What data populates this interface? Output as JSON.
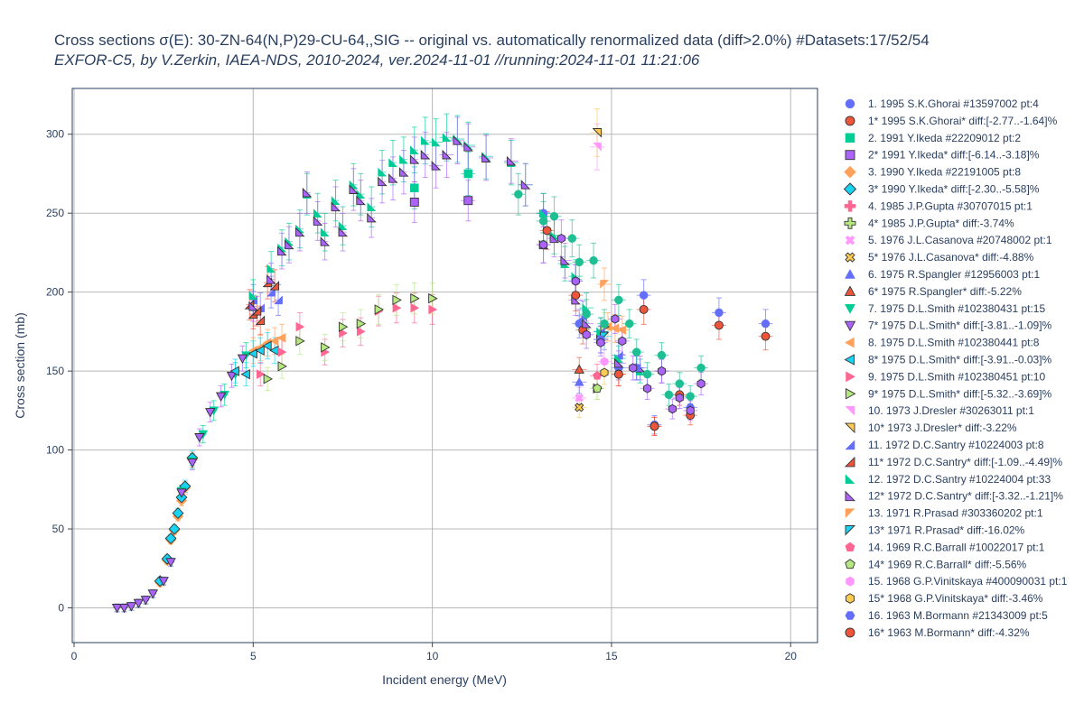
{
  "chart_data": {
    "type": "scatter",
    "title": "Cross sections σ(E): 30-ZN-64(N,P)29-CU-64,,SIG -- original vs. automatically renormalized data (diff>2.0%) #Datasets:17/52/54",
    "subtitle": "EXFOR-C5, by V.Zerkin, IAEA-NDS, 2010-2024, ver.2024-11-01 //running:2024-11-01 11:21:06",
    "xlabel": "Incident energy (MeV)",
    "ylabel": "Cross section (mb)",
    "xlim": [
      -0.05,
      20.75
    ],
    "ylim": [
      -22,
      329
    ],
    "xticks": [
      0,
      5,
      10,
      15,
      20
    ],
    "yticks": [
      0,
      50,
      100,
      150,
      200,
      250,
      300
    ],
    "grid": true,
    "legend_position": "right",
    "series": [
      {
        "name": "1. 1995 S.K.Ghorai #13597002 pt:4",
        "color": "#636efa",
        "marker": "circle",
        "points": [
          [
            13.1,
            250
          ],
          [
            14.1,
            180
          ],
          [
            15.2,
            152
          ],
          [
            16.2,
            116
          ]
        ]
      },
      {
        "name": "1* 1995 S.K.Ghorai* diff:[-2.77..-1.64]%",
        "color": "#ef553b",
        "marker": "circle-o",
        "points": [
          [
            13.2,
            239
          ],
          [
            14.2,
            176
          ],
          [
            15.2,
            148
          ],
          [
            16.2,
            115
          ]
        ]
      },
      {
        "name": "2. 1991 Y.Ikeda #22209012 pt:2",
        "color": "#00cc96",
        "marker": "square",
        "points": [
          [
            9.5,
            266
          ],
          [
            11.0,
            275
          ]
        ]
      },
      {
        "name": "2* 1991 Y.Ikeda* diff:[-6.14..-3.18]%",
        "color": "#ab63fa",
        "marker": "square-o",
        "points": [
          [
            9.5,
            257
          ],
          [
            11.0,
            258
          ]
        ]
      },
      {
        "name": "3. 1990 Y.Ikeda #22191005 pt:8",
        "color": "#ffa15a",
        "marker": "diamond",
        "points": [
          [
            2.4,
            16
          ],
          [
            2.6,
            30
          ],
          [
            2.7,
            43
          ],
          [
            2.8,
            49
          ],
          [
            2.9,
            58
          ],
          [
            3.0,
            68
          ],
          [
            3.1,
            76
          ],
          [
            3.3,
            94
          ]
        ]
      },
      {
        "name": "3* 1990 Y.Ikeda* diff:[-2.30..-5.58]%",
        "color": "#19d3f3",
        "marker": "diamond-o",
        "points": [
          [
            2.4,
            17
          ],
          [
            2.6,
            31
          ],
          [
            2.7,
            44
          ],
          [
            2.8,
            50
          ],
          [
            2.9,
            60
          ],
          [
            3.0,
            70
          ],
          [
            3.1,
            77
          ],
          [
            3.3,
            95
          ]
        ]
      },
      {
        "name": "4. 1985 J.P.Gupta #30707015 pt:1",
        "color": "#ff6692",
        "marker": "cross",
        "points": []
      },
      {
        "name": "4* 1985 J.P.Gupta* diff:-3.74%",
        "color": "#b6e880",
        "marker": "cross-o",
        "points": []
      },
      {
        "name": "5. 1976 J.L.Casanova #20748002 pt:1",
        "color": "#ff97ff",
        "marker": "x",
        "points": [
          [
            14.1,
            133
          ]
        ]
      },
      {
        "name": "5* 1976 J.L.Casanova* diff:-4.88%",
        "color": "#fecb52",
        "marker": "x-o",
        "points": [
          [
            14.1,
            127
          ]
        ]
      },
      {
        "name": "6. 1975 R.Spangler #12956003 pt:1",
        "color": "#636efa",
        "marker": "triangle-up",
        "points": [
          [
            14.1,
            143
          ]
        ]
      },
      {
        "name": "6* 1975 R.Spangler* diff:-5.22%",
        "color": "#ef553b",
        "marker": "triangle-up-o",
        "points": [
          [
            14.1,
            151
          ]
        ]
      },
      {
        "name": "7. 1975 D.L.Smith #102380431 pt:15",
        "color": "#00cc96",
        "marker": "triangle-down",
        "points": [
          [
            1.2,
            0
          ],
          [
            1.4,
            0
          ],
          [
            1.6,
            1
          ],
          [
            1.8,
            3
          ],
          [
            2.0,
            5
          ],
          [
            2.2,
            9
          ],
          [
            2.5,
            17
          ],
          [
            2.7,
            29
          ],
          [
            3.0,
            74
          ],
          [
            3.3,
            93
          ],
          [
            3.6,
            110
          ],
          [
            3.9,
            125
          ],
          [
            4.2,
            135
          ],
          [
            4.5,
            148
          ],
          [
            4.8,
            160
          ]
        ]
      },
      {
        "name": "7* 1975 D.L.Smith* diff:[-3.81..-1.09]%",
        "color": "#ab63fa",
        "marker": "triangle-down-o",
        "points": [
          [
            1.2,
            0
          ],
          [
            1.4,
            0
          ],
          [
            1.6,
            1
          ],
          [
            1.8,
            3
          ],
          [
            2.0,
            5
          ],
          [
            2.2,
            9
          ],
          [
            2.5,
            17
          ],
          [
            2.7,
            29
          ],
          [
            3.0,
            73
          ],
          [
            3.3,
            92
          ],
          [
            3.5,
            108
          ],
          [
            3.8,
            124
          ],
          [
            4.1,
            134
          ],
          [
            4.4,
            147
          ],
          [
            4.7,
            158
          ]
        ]
      },
      {
        "name": "8. 1975 D.L.Smith #102380441 pt:8",
        "color": "#ffa15a",
        "marker": "triangle-left",
        "points": [
          [
            5.0,
            163
          ],
          [
            5.2,
            165
          ],
          [
            5.4,
            168
          ],
          [
            5.6,
            169
          ],
          [
            5.8,
            171
          ],
          [
            14.9,
            178
          ],
          [
            15.1,
            177
          ],
          [
            15.3,
            176
          ]
        ]
      },
      {
        "name": "8* 1975 D.L.Smith* diff:[-3.91..-0.03]%",
        "color": "#19d3f3",
        "marker": "triangle-left-o",
        "points": [
          [
            4.5,
            150
          ],
          [
            4.8,
            148
          ],
          [
            5.0,
            161
          ],
          [
            5.2,
            163
          ],
          [
            5.4,
            166
          ],
          [
            5.6,
            163
          ]
        ]
      },
      {
        "name": "9. 1975 D.L.Smith #102380451 pt:10",
        "color": "#ff6692",
        "marker": "triangle-right",
        "points": [
          [
            5.2,
            148
          ],
          [
            5.8,
            162
          ],
          [
            6.3,
            178
          ],
          [
            7.0,
            162
          ],
          [
            7.5,
            174
          ],
          [
            8.0,
            175
          ],
          [
            8.5,
            188
          ],
          [
            9.0,
            190
          ],
          [
            9.5,
            190
          ],
          [
            10.0,
            189
          ]
        ]
      },
      {
        "name": "9* 1975 D.L.Smith* diff:[-5.32..-3.69]%",
        "color": "#b6e880",
        "marker": "triangle-right-o",
        "points": [
          [
            5.4,
            145
          ],
          [
            5.8,
            153
          ],
          [
            6.3,
            169
          ],
          [
            7.0,
            165
          ],
          [
            7.5,
            178
          ],
          [
            8.0,
            180
          ],
          [
            8.5,
            189
          ],
          [
            9.0,
            195
          ],
          [
            9.5,
            196
          ],
          [
            10.0,
            196
          ],
          [
            14.6,
            139
          ],
          [
            14.8,
            178
          ]
        ]
      },
      {
        "name": "10. 1973 J.Dresler #30263011 pt:1",
        "color": "#ff97ff",
        "marker": "triangle-ne",
        "points": [
          [
            14.6,
            292
          ]
        ]
      },
      {
        "name": "10* 1973 J.Dresler* diff:-3.22%",
        "color": "#fecb52",
        "marker": "triangle-ne-o",
        "points": [
          [
            14.6,
            301
          ]
        ]
      },
      {
        "name": "11. 1972 D.C.Santry #10224003 pt:8",
        "color": "#636efa",
        "marker": "triangle-se",
        "points": [
          [
            5.0,
            195
          ],
          [
            5.2,
            190
          ],
          [
            5.5,
            200
          ],
          [
            5.7,
            195
          ],
          [
            14.2,
            185
          ],
          [
            14.7,
            175
          ],
          [
            15.2,
            160
          ],
          [
            15.7,
            152
          ]
        ]
      },
      {
        "name": "11* 1972 D.C.Santry* diff:[-1.09..-4.49]%",
        "color": "#ef553b",
        "marker": "triangle-se-o",
        "points": [
          [
            4.9,
            192
          ],
          [
            5.0,
            186
          ],
          [
            5.1,
            188
          ],
          [
            5.2,
            182
          ],
          [
            5.4,
            206
          ],
          [
            5.6,
            204
          ]
        ]
      },
      {
        "name": "12. 1972 D.C.Santry #10224004 pt:33",
        "color": "#00cc96",
        "marker": "triangle-sw",
        "points": [
          [
            5.0,
            198
          ],
          [
            5.5,
            215
          ],
          [
            5.8,
            228
          ],
          [
            6.0,
            232
          ],
          [
            6.3,
            240
          ],
          [
            6.5,
            262
          ],
          [
            6.8,
            250
          ],
          [
            7.0,
            238
          ],
          [
            7.3,
            258
          ],
          [
            7.5,
            242
          ],
          [
            7.8,
            268
          ],
          [
            8.0,
            262
          ],
          [
            8.3,
            254
          ],
          [
            8.6,
            276
          ],
          [
            8.9,
            282
          ],
          [
            9.2,
            284
          ],
          [
            9.5,
            290
          ],
          [
            9.8,
            296
          ],
          [
            10.1,
            295
          ],
          [
            10.4,
            298
          ],
          [
            10.7,
            297
          ],
          [
            11.0,
            293
          ],
          [
            11.5,
            286
          ],
          [
            12.2,
            282
          ],
          [
            12.6,
            268
          ],
          [
            13.1,
            250
          ],
          [
            13.4,
            236
          ],
          [
            13.7,
            218
          ],
          [
            14.0,
            210
          ],
          [
            14.3,
            190
          ],
          [
            14.7,
            175
          ],
          [
            15.2,
            158
          ],
          [
            15.8,
            150
          ]
        ]
      },
      {
        "name": "12* 1972 D.C.Santry* diff:[-3.32..-1.21]%",
        "color": "#ab63fa",
        "marker": "triangle-sw-o",
        "points": [
          [
            5.0,
            191
          ],
          [
            5.5,
            208
          ],
          [
            5.8,
            226
          ],
          [
            6.0,
            230
          ],
          [
            6.3,
            238
          ],
          [
            6.5,
            263
          ],
          [
            6.8,
            245
          ],
          [
            7.0,
            232
          ],
          [
            7.3,
            254
          ],
          [
            7.5,
            238
          ],
          [
            7.8,
            265
          ],
          [
            8.0,
            258
          ],
          [
            8.3,
            247
          ],
          [
            8.6,
            270
          ],
          [
            8.9,
            272
          ],
          [
            9.2,
            276
          ],
          [
            9.5,
            284
          ],
          [
            9.8,
            287
          ],
          [
            10.1,
            280
          ],
          [
            10.4,
            287
          ],
          [
            10.7,
            296
          ],
          [
            11.0,
            292
          ],
          [
            11.5,
            285
          ],
          [
            12.2,
            283
          ],
          [
            12.6,
            268
          ],
          [
            13.1,
            230
          ],
          [
            13.4,
            234
          ],
          [
            13.7,
            220
          ],
          [
            14.0,
            195
          ],
          [
            14.3,
            180
          ],
          [
            14.7,
            170
          ],
          [
            15.2,
            155
          ],
          [
            15.8,
            152
          ]
        ]
      },
      {
        "name": "13. 1971 R.Prasad #303360202 pt:1",
        "color": "#ffa15a",
        "marker": "triangle-nw",
        "points": [
          [
            14.8,
            205
          ]
        ]
      },
      {
        "name": "13* 1971 R.Prasad* diff:-16.02%",
        "color": "#19d3f3",
        "marker": "triangle-nw-o",
        "points": [
          [
            14.8,
            172
          ]
        ]
      },
      {
        "name": "14. 1969 R.C.Barrall #10022017 pt:1",
        "color": "#ff6692",
        "marker": "pentagon",
        "points": [
          [
            14.6,
            147
          ]
        ]
      },
      {
        "name": "14* 1969 R.C.Barrall* diff:-5.56%",
        "color": "#b6e880",
        "marker": "pentagon-o",
        "points": [
          [
            14.6,
            139
          ]
        ]
      },
      {
        "name": "15. 1968 G.P.Vinitskaya #400090031 pt:1",
        "color": "#ff97ff",
        "marker": "hexagon",
        "points": [
          [
            14.8,
            156
          ]
        ]
      },
      {
        "name": "15* 1968 G.P.Vinitskaya* diff:-3.46%",
        "color": "#fecb52",
        "marker": "hexagon-o",
        "points": [
          [
            14.8,
            149
          ]
        ]
      },
      {
        "name": "16. 1963 M.Bormann #21343009 pt:5",
        "color": "#636efa",
        "marker": "hexagon2",
        "points": [
          [
            14.0,
            207
          ],
          [
            14.7,
            170
          ],
          [
            15.7,
            152
          ],
          [
            16.4,
            150
          ],
          [
            17.2,
            127
          ]
        ]
      },
      {
        "name": "16* 1963 M.Bormann* diff:-4.32%",
        "color": "#ef553b",
        "marker": "circle-o",
        "points": [
          [
            14.0,
            198
          ],
          [
            15.2,
            148
          ],
          [
            16.2,
            115
          ],
          [
            16.9,
            135
          ],
          [
            17.2,
            122
          ]
        ]
      },
      {
        "name": "",
        "color": "#1fbf94",
        "marker": "circle",
        "points": [
          [
            12.4,
            262
          ],
          [
            13.1,
            245
          ],
          [
            13.4,
            248
          ],
          [
            13.9,
            234
          ],
          [
            14.1,
            219
          ],
          [
            14.3,
            186
          ],
          [
            14.5,
            220
          ],
          [
            14.8,
            180
          ],
          [
            15.2,
            195
          ],
          [
            15.5,
            180
          ],
          [
            15.7,
            162
          ],
          [
            16.0,
            148
          ],
          [
            16.4,
            160
          ],
          [
            16.6,
            135
          ],
          [
            16.9,
            142
          ],
          [
            17.2,
            134
          ],
          [
            17.5,
            152
          ]
        ]
      },
      {
        "name": "",
        "color": "#636efa",
        "marker": "circle",
        "points": [
          [
            15.9,
            198
          ],
          [
            18.0,
            187
          ],
          [
            19.3,
            180
          ]
        ]
      },
      {
        "name": "",
        "color": "#ef553b",
        "marker": "circle-o",
        "points": [
          [
            15.9,
            189
          ],
          [
            18.0,
            179
          ],
          [
            19.3,
            172
          ]
        ]
      },
      {
        "name": "",
        "color": "#ab63fa",
        "marker": "hexagon-o",
        "points": [
          [
            13.1,
            230
          ],
          [
            13.6,
            234
          ],
          [
            14.0,
            207
          ],
          [
            14.3,
            173
          ],
          [
            14.7,
            168
          ],
          [
            15.1,
            183
          ],
          [
            15.3,
            169
          ],
          [
            15.6,
            152
          ],
          [
            16.0,
            139
          ],
          [
            16.4,
            150
          ],
          [
            16.7,
            126
          ],
          [
            16.9,
            133
          ],
          [
            17.2,
            125
          ],
          [
            17.5,
            142
          ]
        ]
      }
    ]
  }
}
